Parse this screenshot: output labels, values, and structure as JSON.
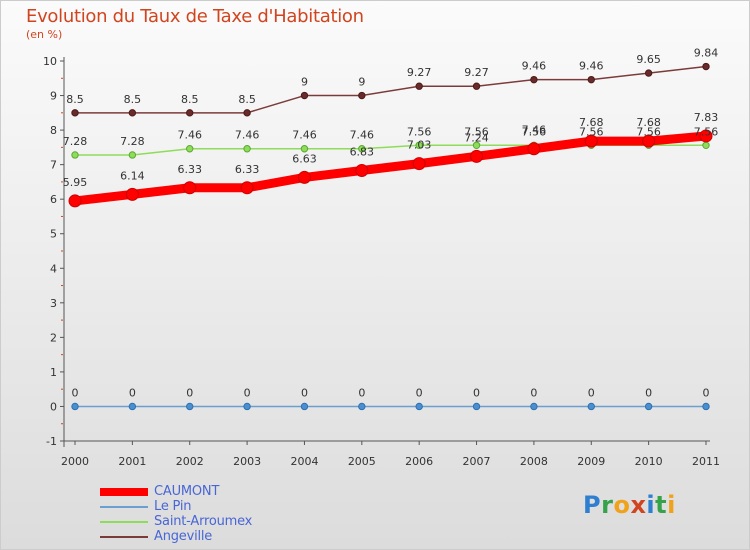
{
  "title": "Evolution du Taux de Taxe d'Habitation",
  "unit_label": "(en %)",
  "logo": {
    "text": "Proxiti",
    "letters": [
      {
        "char": "P",
        "color": "#2f7fd0"
      },
      {
        "char": "r",
        "color": "#36a34a"
      },
      {
        "char": "o",
        "color": "#f0a21a"
      },
      {
        "char": "x",
        "color": "#d0451f"
      },
      {
        "char": "i",
        "color": "#2f7fd0"
      },
      {
        "char": "t",
        "color": "#36a34a"
      },
      {
        "char": "i",
        "color": "#f0a21a"
      }
    ]
  },
  "chart_data": {
    "type": "line",
    "title": "Evolution du Taux de Taxe d'Habitation",
    "ylabel": "(en %)",
    "categories": [
      "2000",
      "2001",
      "2002",
      "2003",
      "2004",
      "2005",
      "2006",
      "2007",
      "2008",
      "2009",
      "2010",
      "2011"
    ],
    "ylim": [
      -1,
      10
    ],
    "yticks": [
      -1,
      0,
      1,
      2,
      3,
      4,
      5,
      6,
      7,
      8,
      9,
      10
    ],
    "grid": false,
    "legend_position": "bottom-left",
    "series": [
      {
        "name": "CAUMONT",
        "color": "#ff0000",
        "values": [
          5.95,
          6.14,
          6.33,
          6.33,
          6.63,
          6.83,
          7.03,
          7.24,
          7.46,
          7.68,
          7.68,
          7.83
        ],
        "labels": [
          "5.95",
          "6.14",
          "6.33",
          "6.33",
          "6.63",
          "6.83",
          "7.03",
          "7.24",
          "7.46",
          "7.68",
          "7.68",
          "7.83"
        ]
      },
      {
        "name": "Le Pin",
        "color": "#6aa0d0",
        "values": [
          0,
          0,
          0,
          0,
          0,
          0,
          0,
          0,
          0,
          0,
          0,
          0
        ],
        "labels": [
          "0",
          "0",
          "0",
          "0",
          "0",
          "0",
          "0",
          "0",
          "0",
          "0",
          "0",
          "0"
        ]
      },
      {
        "name": "Saint-Arroumex",
        "color": "#8fdc5a",
        "values": [
          7.28,
          7.28,
          7.46,
          7.46,
          7.46,
          7.46,
          7.56,
          7.56,
          7.56,
          7.56,
          7.56,
          7.56
        ],
        "labels": [
          "7.28",
          "7.28",
          "7.46",
          "7.46",
          "7.46",
          "7.46",
          "7.56",
          "7.56",
          "7.56",
          "7.56",
          "7.56",
          "7.56"
        ]
      },
      {
        "name": "Angeville",
        "color": "#7b3b3b",
        "values": [
          8.5,
          8.5,
          8.5,
          8.5,
          9,
          9,
          9.27,
          9.27,
          9.46,
          9.46,
          9.65,
          9.84
        ],
        "labels": [
          "8.5",
          "8.5",
          "8.5",
          "8.5",
          "9",
          "9",
          "9.27",
          "9.27",
          "9.46",
          "9.46",
          "9.65",
          "9.84"
        ]
      }
    ]
  }
}
